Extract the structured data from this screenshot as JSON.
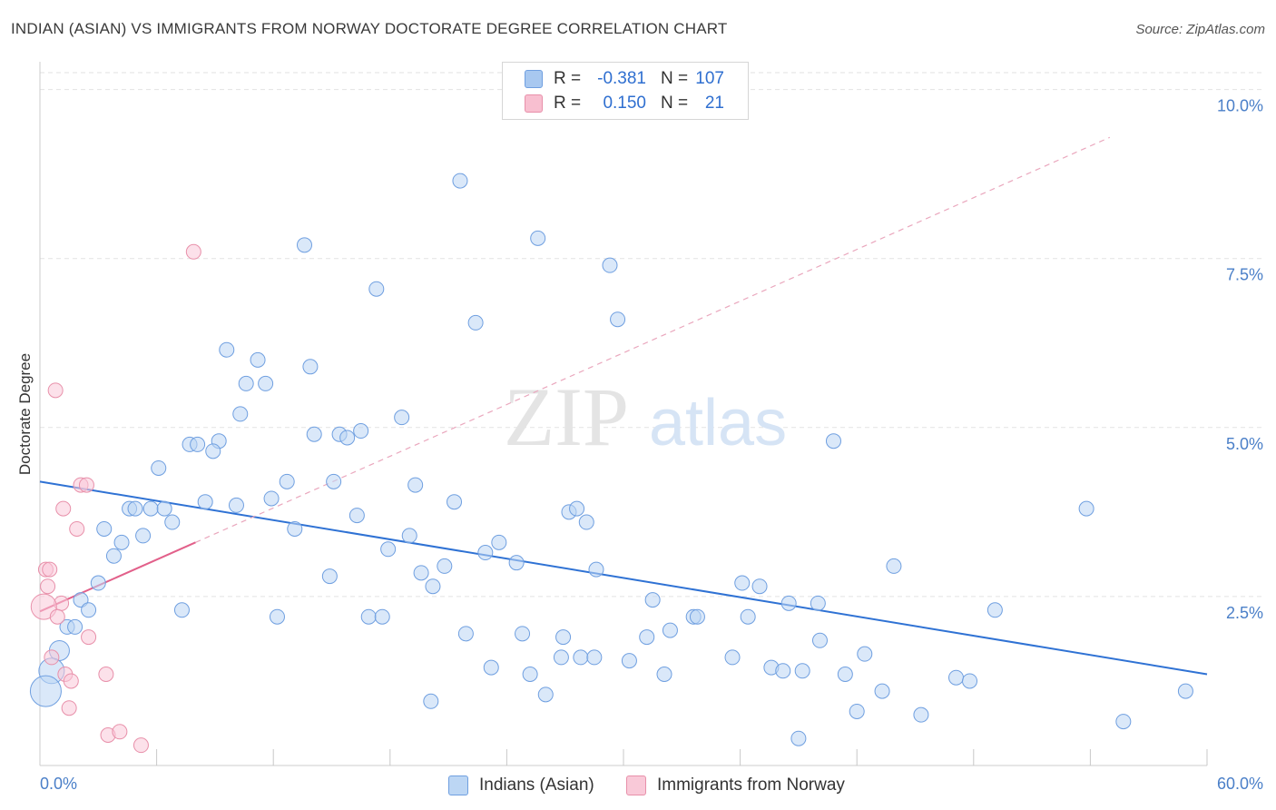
{
  "title": "INDIAN (ASIAN) VS IMMIGRANTS FROM NORWAY DOCTORATE DEGREE CORRELATION CHART",
  "source": "Source: ZipAtlas.com",
  "watermark": {
    "zip": "ZIP",
    "atlas": "atlas"
  },
  "legend": {
    "rows": [
      {
        "r_label": "R =",
        "r_value": "-0.381",
        "n_label": "N =",
        "n_value": "107",
        "color": "#a8c8f0",
        "border": "#6f9fe0"
      },
      {
        "r_label": "R =",
        "r_value": "0.150",
        "n_label": "N =",
        "n_value": "21",
        "color": "#f8bfd0",
        "border": "#e890aa"
      }
    ]
  },
  "bottom_legend": [
    {
      "label": "Indians (Asian)",
      "color": "#bcd6f4",
      "border": "#6f9fe0"
    },
    {
      "label": "Immigrants from Norway",
      "color": "#f9c9d8",
      "border": "#e890aa"
    }
  ],
  "chart_data": {
    "type": "scatter",
    "title": "INDIAN (ASIAN) VS IMMIGRANTS FROM NORWAY DOCTORATE DEGREE CORRELATION CHART",
    "xlabel": "",
    "ylabel": "Doctorate Degree",
    "xlim": [
      0,
      60
    ],
    "ylim": [
      0,
      10.25
    ],
    "x_tick_labels": [
      "0.0%",
      "60.0%"
    ],
    "y_ticks": [
      2.5,
      5.0,
      7.5,
      10.0
    ],
    "y_tick_labels": [
      "2.5%",
      "5.0%",
      "7.5%",
      "10.0%"
    ],
    "series": [
      {
        "name": "Indians (Asian)",
        "color": "#6f9fe0",
        "fill": "#bcd6f4",
        "trend": {
          "x": [
            0,
            60
          ],
          "y": [
            4.2,
            1.35
          ],
          "color": "#2f72d4",
          "style": "solid"
        },
        "points": [
          {
            "x": 21.6,
            "y": 8.65
          },
          {
            "x": 25.6,
            "y": 7.8
          },
          {
            "x": 13.6,
            "y": 7.7
          },
          {
            "x": 29.3,
            "y": 7.4
          },
          {
            "x": 17.3,
            "y": 7.05
          },
          {
            "x": 22.4,
            "y": 6.55
          },
          {
            "x": 29.7,
            "y": 6.6
          },
          {
            "x": 9.6,
            "y": 6.15
          },
          {
            "x": 11.2,
            "y": 6.0
          },
          {
            "x": 13.9,
            "y": 5.9
          },
          {
            "x": 10.6,
            "y": 5.65
          },
          {
            "x": 11.6,
            "y": 5.65
          },
          {
            "x": 10.3,
            "y": 5.2
          },
          {
            "x": 18.6,
            "y": 5.15
          },
          {
            "x": 14.1,
            "y": 4.9
          },
          {
            "x": 15.4,
            "y": 4.9
          },
          {
            "x": 15.8,
            "y": 4.85
          },
          {
            "x": 16.5,
            "y": 4.95
          },
          {
            "x": 40.8,
            "y": 4.8
          },
          {
            "x": 7.7,
            "y": 4.75
          },
          {
            "x": 8.1,
            "y": 4.75
          },
          {
            "x": 9.2,
            "y": 4.8
          },
          {
            "x": 8.9,
            "y": 4.65
          },
          {
            "x": 6.1,
            "y": 4.4
          },
          {
            "x": 12.7,
            "y": 4.2
          },
          {
            "x": 15.1,
            "y": 4.2
          },
          {
            "x": 19.3,
            "y": 4.15
          },
          {
            "x": 8.5,
            "y": 3.9
          },
          {
            "x": 10.1,
            "y": 3.85
          },
          {
            "x": 11.9,
            "y": 3.95
          },
          {
            "x": 21.3,
            "y": 3.9
          },
          {
            "x": 4.6,
            "y": 3.8
          },
          {
            "x": 4.9,
            "y": 3.8
          },
          {
            "x": 5.7,
            "y": 3.8
          },
          {
            "x": 6.4,
            "y": 3.8
          },
          {
            "x": 16.3,
            "y": 3.7
          },
          {
            "x": 27.2,
            "y": 3.75
          },
          {
            "x": 27.6,
            "y": 3.8
          },
          {
            "x": 28.1,
            "y": 3.6
          },
          {
            "x": 53.8,
            "y": 3.8
          },
          {
            "x": 6.8,
            "y": 3.6
          },
          {
            "x": 3.3,
            "y": 3.5
          },
          {
            "x": 13.1,
            "y": 3.5
          },
          {
            "x": 5.3,
            "y": 3.4
          },
          {
            "x": 19.0,
            "y": 3.4
          },
          {
            "x": 4.2,
            "y": 3.3
          },
          {
            "x": 23.6,
            "y": 3.3
          },
          {
            "x": 3.8,
            "y": 3.1
          },
          {
            "x": 17.9,
            "y": 3.2
          },
          {
            "x": 22.9,
            "y": 3.15
          },
          {
            "x": 24.5,
            "y": 3.0
          },
          {
            "x": 20.8,
            "y": 2.95
          },
          {
            "x": 43.9,
            "y": 2.95
          },
          {
            "x": 19.6,
            "y": 2.85
          },
          {
            "x": 28.6,
            "y": 2.9
          },
          {
            "x": 14.9,
            "y": 2.8
          },
          {
            "x": 3.0,
            "y": 2.7
          },
          {
            "x": 20.2,
            "y": 2.65
          },
          {
            "x": 36.1,
            "y": 2.7
          },
          {
            "x": 37.0,
            "y": 2.65
          },
          {
            "x": 31.5,
            "y": 2.45
          },
          {
            "x": 2.1,
            "y": 2.45
          },
          {
            "x": 38.5,
            "y": 2.4
          },
          {
            "x": 40.0,
            "y": 2.4
          },
          {
            "x": 2.5,
            "y": 2.3
          },
          {
            "x": 7.3,
            "y": 2.3
          },
          {
            "x": 49.1,
            "y": 2.3
          },
          {
            "x": 12.2,
            "y": 2.2
          },
          {
            "x": 16.9,
            "y": 2.2
          },
          {
            "x": 17.6,
            "y": 2.2
          },
          {
            "x": 33.6,
            "y": 2.2
          },
          {
            "x": 33.8,
            "y": 2.2
          },
          {
            "x": 36.4,
            "y": 2.2
          },
          {
            "x": 1.4,
            "y": 2.05
          },
          {
            "x": 1.8,
            "y": 2.05
          },
          {
            "x": 32.4,
            "y": 2.0
          },
          {
            "x": 21.9,
            "y": 1.95
          },
          {
            "x": 24.8,
            "y": 1.95
          },
          {
            "x": 26.9,
            "y": 1.9
          },
          {
            "x": 31.2,
            "y": 1.9
          },
          {
            "x": 40.1,
            "y": 1.85
          },
          {
            "x": 1.0,
            "y": 1.7
          },
          {
            "x": 26.8,
            "y": 1.6
          },
          {
            "x": 27.8,
            "y": 1.6
          },
          {
            "x": 28.5,
            "y": 1.6
          },
          {
            "x": 30.3,
            "y": 1.55
          },
          {
            "x": 35.6,
            "y": 1.6
          },
          {
            "x": 42.4,
            "y": 1.65
          },
          {
            "x": 0.6,
            "y": 1.4
          },
          {
            "x": 23.2,
            "y": 1.45
          },
          {
            "x": 37.6,
            "y": 1.45
          },
          {
            "x": 38.2,
            "y": 1.4
          },
          {
            "x": 39.2,
            "y": 1.4
          },
          {
            "x": 25.2,
            "y": 1.35
          },
          {
            "x": 32.1,
            "y": 1.35
          },
          {
            "x": 41.4,
            "y": 1.35
          },
          {
            "x": 47.1,
            "y": 1.3
          },
          {
            "x": 47.8,
            "y": 1.25
          },
          {
            "x": 0.3,
            "y": 1.1
          },
          {
            "x": 26.0,
            "y": 1.05
          },
          {
            "x": 43.3,
            "y": 1.1
          },
          {
            "x": 58.9,
            "y": 1.1
          },
          {
            "x": 20.1,
            "y": 0.95
          },
          {
            "x": 42.0,
            "y": 0.8
          },
          {
            "x": 45.3,
            "y": 0.75
          },
          {
            "x": 55.7,
            "y": 0.65
          },
          {
            "x": 39.0,
            "y": 0.4
          }
        ]
      },
      {
        "name": "Immigrants from Norway",
        "color": "#e890aa",
        "fill": "#f9c9d8",
        "trend": {
          "x": [
            0,
            8
          ],
          "y": [
            2.28,
            3.3
          ],
          "x_dashed_to": 55,
          "color": "#e2608a",
          "style": "solid+dashed"
        },
        "points": [
          {
            "x": 7.9,
            "y": 7.6
          },
          {
            "x": 0.8,
            "y": 5.55
          },
          {
            "x": 2.1,
            "y": 4.15
          },
          {
            "x": 2.4,
            "y": 4.15
          },
          {
            "x": 1.2,
            "y": 3.8
          },
          {
            "x": 1.9,
            "y": 3.5
          },
          {
            "x": 0.3,
            "y": 2.9
          },
          {
            "x": 0.5,
            "y": 2.9
          },
          {
            "x": 0.4,
            "y": 2.65
          },
          {
            "x": 1.1,
            "y": 2.4
          },
          {
            "x": 0.2,
            "y": 2.35
          },
          {
            "x": 0.9,
            "y": 2.2
          },
          {
            "x": 2.5,
            "y": 1.9
          },
          {
            "x": 0.6,
            "y": 1.6
          },
          {
            "x": 1.3,
            "y": 1.35
          },
          {
            "x": 3.4,
            "y": 1.35
          },
          {
            "x": 1.6,
            "y": 1.25
          },
          {
            "x": 1.5,
            "y": 0.85
          },
          {
            "x": 3.5,
            "y": 0.45
          },
          {
            "x": 4.1,
            "y": 0.5
          },
          {
            "x": 5.2,
            "y": 0.3
          }
        ]
      }
    ]
  }
}
